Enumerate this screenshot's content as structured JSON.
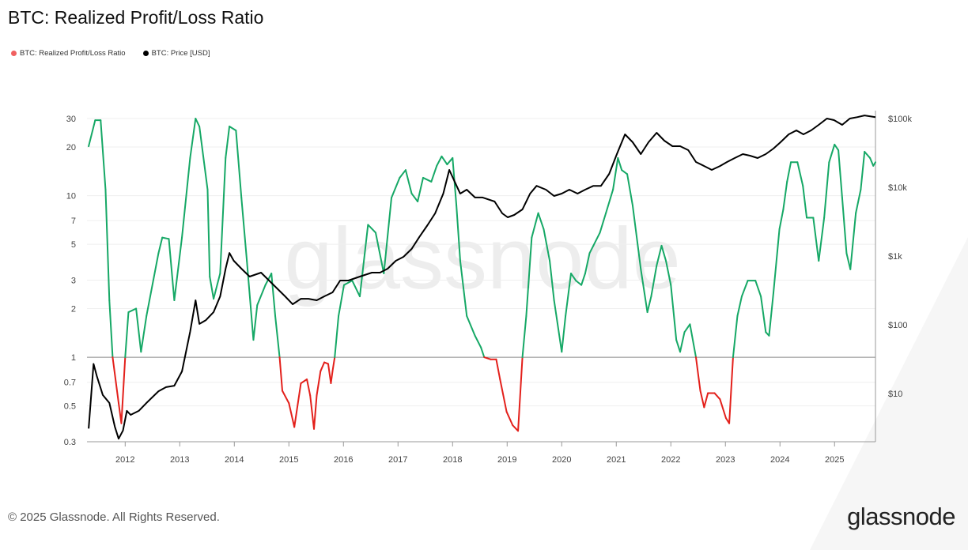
{
  "title": "BTC: Realized Profit/Loss Ratio",
  "legend": [
    {
      "label": "BTC: Realized Profit/Loss Ratio",
      "color": "#f06060"
    },
    {
      "label": "BTC: Price [USD]",
      "color": "#000000"
    }
  ],
  "watermark": "glassnode",
  "footer": "© 2025 Glassnode. All Rights Reserved.",
  "logo": "glassnode",
  "chart_data": {
    "type": "line",
    "title": "BTC: Realized Profit/Loss Ratio",
    "x_ticks": [
      "2012",
      "2013",
      "2014",
      "2015",
      "2016",
      "2017",
      "2018",
      "2019",
      "2020",
      "2021",
      "2022",
      "2023",
      "2024",
      "2025"
    ],
    "xlim": [
      2011.3,
      2025.75
    ],
    "y_left": {
      "scale": "log",
      "ylim": [
        0.3,
        30
      ],
      "ticks": [
        "0.3",
        "0.5",
        "0.7",
        "1",
        "2",
        "3",
        "5",
        "7",
        "10",
        "20",
        "30"
      ],
      "reference_line": 1
    },
    "y_right": {
      "scale": "log",
      "ylim": [
        2,
        130000
      ],
      "ticks": [
        {
          "v": 10,
          "label": "$10"
        },
        {
          "v": 100,
          "label": "$100"
        },
        {
          "v": 1000,
          "label": "$1k"
        },
        {
          "v": 10000,
          "label": "$10k"
        },
        {
          "v": 100000,
          "label": "$100k"
        }
      ]
    },
    "grid": true,
    "legend_position": "top-left",
    "colors": {
      "above_1": "#16a866",
      "below_1": "#e3201b",
      "price": "#000000"
    },
    "series": [
      {
        "name": "BTC: Realized Profit/Loss Ratio",
        "axis": "left",
        "points": [
          [
            2011.33,
            20.2
          ],
          [
            2011.45,
            29.3
          ],
          [
            2011.55,
            29.3
          ],
          [
            2011.64,
            10.9
          ],
          [
            2011.71,
            2.25
          ],
          [
            2011.77,
            1
          ],
          [
            2011.88,
            0.52
          ],
          [
            2011.93,
            0.39
          ],
          [
            2012.0,
            1
          ],
          [
            2012.06,
            1.9
          ],
          [
            2012.2,
            2.0
          ],
          [
            2012.29,
            1.08
          ],
          [
            2012.39,
            1.8
          ],
          [
            2012.61,
            4.4
          ],
          [
            2012.68,
            5.5
          ],
          [
            2012.8,
            5.4
          ],
          [
            2012.9,
            2.25
          ],
          [
            2013.04,
            5.5
          ],
          [
            2013.19,
            17.1
          ],
          [
            2013.29,
            30
          ],
          [
            2013.36,
            26.8
          ],
          [
            2013.51,
            10.9
          ],
          [
            2013.55,
            3.15
          ],
          [
            2013.62,
            2.3
          ],
          [
            2013.74,
            3.3
          ],
          [
            2013.84,
            17.1
          ],
          [
            2013.91,
            26.8
          ],
          [
            2014.03,
            25.3
          ],
          [
            2014.13,
            9.7
          ],
          [
            2014.23,
            3.95
          ],
          [
            2014.35,
            1.28
          ],
          [
            2014.42,
            2.1
          ],
          [
            2014.57,
            2.8
          ],
          [
            2014.68,
            3.3
          ],
          [
            2014.75,
            1.8
          ],
          [
            2014.83,
            1
          ],
          [
            2014.88,
            0.62
          ],
          [
            2015.0,
            0.52
          ],
          [
            2015.1,
            0.37
          ],
          [
            2015.22,
            0.69
          ],
          [
            2015.33,
            0.73
          ],
          [
            2015.39,
            0.58
          ],
          [
            2015.46,
            0.36
          ],
          [
            2015.51,
            0.58
          ],
          [
            2015.58,
            0.82
          ],
          [
            2015.65,
            0.93
          ],
          [
            2015.72,
            0.91
          ],
          [
            2015.77,
            0.69
          ],
          [
            2015.8,
            0.82
          ],
          [
            2015.84,
            1
          ],
          [
            2015.91,
            1.8
          ],
          [
            2016.01,
            2.8
          ],
          [
            2016.16,
            2.98
          ],
          [
            2016.3,
            2.38
          ],
          [
            2016.45,
            6.6
          ],
          [
            2016.59,
            5.9
          ],
          [
            2016.74,
            3.3
          ],
          [
            2016.88,
            9.7
          ],
          [
            2017.03,
            12.9
          ],
          [
            2017.14,
            14.4
          ],
          [
            2017.25,
            10.3
          ],
          [
            2017.36,
            9.2
          ],
          [
            2017.46,
            12.9
          ],
          [
            2017.61,
            12.2
          ],
          [
            2017.71,
            15.3
          ],
          [
            2017.8,
            17.5
          ],
          [
            2017.9,
            15.6
          ],
          [
            2018.0,
            17.1
          ],
          [
            2018.07,
            8.7
          ],
          [
            2018.14,
            3.95
          ],
          [
            2018.26,
            1.8
          ],
          [
            2018.41,
            1.36
          ],
          [
            2018.52,
            1.15
          ],
          [
            2018.58,
            1
          ],
          [
            2018.7,
            0.97
          ],
          [
            2018.8,
            0.97
          ],
          [
            2018.87,
            0.73
          ],
          [
            2018.99,
            0.46
          ],
          [
            2019.1,
            0.38
          ],
          [
            2019.2,
            0.35
          ],
          [
            2019.28,
            1
          ],
          [
            2019.35,
            1.8
          ],
          [
            2019.45,
            5.5
          ],
          [
            2019.57,
            7.8
          ],
          [
            2019.67,
            6.2
          ],
          [
            2019.78,
            3.95
          ],
          [
            2019.86,
            2.25
          ],
          [
            2020.0,
            1.08
          ],
          [
            2020.07,
            1.8
          ],
          [
            2020.17,
            3.3
          ],
          [
            2020.26,
            2.98
          ],
          [
            2020.36,
            2.8
          ],
          [
            2020.43,
            3.3
          ],
          [
            2020.51,
            4.4
          ],
          [
            2020.58,
            4.9
          ],
          [
            2020.7,
            5.9
          ],
          [
            2020.81,
            7.8
          ],
          [
            2020.94,
            10.9
          ],
          [
            2021.03,
            17.1
          ],
          [
            2021.1,
            14.4
          ],
          [
            2021.2,
            13.6
          ],
          [
            2021.3,
            8.7
          ],
          [
            2021.45,
            3.5
          ],
          [
            2021.57,
            1.9
          ],
          [
            2021.64,
            2.38
          ],
          [
            2021.74,
            3.7
          ],
          [
            2021.83,
            4.9
          ],
          [
            2021.91,
            3.95
          ],
          [
            2022.0,
            2.8
          ],
          [
            2022.1,
            1.28
          ],
          [
            2022.17,
            1.08
          ],
          [
            2022.25,
            1.43
          ],
          [
            2022.35,
            1.6
          ],
          [
            2022.46,
            1
          ],
          [
            2022.54,
            0.62
          ],
          [
            2022.61,
            0.49
          ],
          [
            2022.68,
            0.6
          ],
          [
            2022.8,
            0.6
          ],
          [
            2022.9,
            0.55
          ],
          [
            2023.01,
            0.42
          ],
          [
            2023.07,
            0.39
          ],
          [
            2023.14,
            1
          ],
          [
            2023.22,
            1.8
          ],
          [
            2023.3,
            2.38
          ],
          [
            2023.41,
            2.98
          ],
          [
            2023.55,
            2.98
          ],
          [
            2023.65,
            2.38
          ],
          [
            2023.74,
            1.43
          ],
          [
            2023.8,
            1.36
          ],
          [
            2023.88,
            2.5
          ],
          [
            2023.99,
            6.2
          ],
          [
            2024.06,
            8.2
          ],
          [
            2024.13,
            12.2
          ],
          [
            2024.2,
            16.1
          ],
          [
            2024.32,
            16.1
          ],
          [
            2024.42,
            11.5
          ],
          [
            2024.49,
            7.3
          ],
          [
            2024.61,
            7.3
          ],
          [
            2024.71,
            3.95
          ],
          [
            2024.81,
            7.3
          ],
          [
            2024.9,
            16.1
          ],
          [
            2025.0,
            20.7
          ],
          [
            2025.07,
            19.1
          ],
          [
            2025.14,
            9.7
          ],
          [
            2025.22,
            4.4
          ],
          [
            2025.29,
            3.5
          ],
          [
            2025.39,
            7.8
          ],
          [
            2025.48,
            10.9
          ],
          [
            2025.55,
            18.7
          ],
          [
            2025.65,
            17.1
          ],
          [
            2025.71,
            15.3
          ],
          [
            2025.75,
            16.1
          ]
        ]
      },
      {
        "name": "BTC: Price [USD]",
        "axis": "right",
        "points": [
          [
            2011.33,
            3.1
          ],
          [
            2011.42,
            27
          ],
          [
            2011.48,
            18
          ],
          [
            2011.59,
            9.5
          ],
          [
            2011.71,
            7.3
          ],
          [
            2011.81,
            3.3
          ],
          [
            2011.88,
            2.2
          ],
          [
            2011.96,
            2.9
          ],
          [
            2012.03,
            5.6
          ],
          [
            2012.1,
            4.9
          ],
          [
            2012.25,
            5.6
          ],
          [
            2012.39,
            7.3
          ],
          [
            2012.61,
            10.8
          ],
          [
            2012.75,
            12.4
          ],
          [
            2012.9,
            13
          ],
          [
            2013.04,
            21
          ],
          [
            2013.19,
            79
          ],
          [
            2013.29,
            227
          ],
          [
            2013.36,
            103
          ],
          [
            2013.48,
            117
          ],
          [
            2013.62,
            153
          ],
          [
            2013.74,
            259
          ],
          [
            2013.84,
            655
          ],
          [
            2013.91,
            1110
          ],
          [
            2013.99,
            853
          ],
          [
            2014.13,
            655
          ],
          [
            2014.28,
            502
          ],
          [
            2014.49,
            574
          ],
          [
            2014.71,
            386
          ],
          [
            2014.93,
            259
          ],
          [
            2015.07,
            199
          ],
          [
            2015.22,
            239
          ],
          [
            2015.36,
            239
          ],
          [
            2015.51,
            227
          ],
          [
            2015.65,
            259
          ],
          [
            2015.8,
            296
          ],
          [
            2015.94,
            440
          ],
          [
            2016.09,
            440
          ],
          [
            2016.3,
            502
          ],
          [
            2016.52,
            574
          ],
          [
            2016.67,
            574
          ],
          [
            2016.81,
            655
          ],
          [
            2016.96,
            853
          ],
          [
            2017.1,
            975
          ],
          [
            2017.25,
            1270
          ],
          [
            2017.39,
            1890
          ],
          [
            2017.54,
            2810
          ],
          [
            2017.68,
            4180
          ],
          [
            2017.83,
            8090
          ],
          [
            2017.94,
            17900
          ],
          [
            2018.04,
            12000
          ],
          [
            2018.14,
            8090
          ],
          [
            2018.26,
            9240
          ],
          [
            2018.41,
            7100
          ],
          [
            2018.55,
            7100
          ],
          [
            2018.77,
            6210
          ],
          [
            2018.91,
            4180
          ],
          [
            2019.01,
            3660
          ],
          [
            2019.13,
            3960
          ],
          [
            2019.28,
            4760
          ],
          [
            2019.42,
            8090
          ],
          [
            2019.54,
            10500
          ],
          [
            2019.71,
            9240
          ],
          [
            2019.86,
            7480
          ],
          [
            2020.0,
            8090
          ],
          [
            2020.14,
            9240
          ],
          [
            2020.29,
            8090
          ],
          [
            2020.43,
            9240
          ],
          [
            2020.58,
            10500
          ],
          [
            2020.72,
            10500
          ],
          [
            2020.87,
            15700
          ],
          [
            2021.01,
            30400
          ],
          [
            2021.16,
            58900
          ],
          [
            2021.3,
            45200
          ],
          [
            2021.45,
            30400
          ],
          [
            2021.59,
            45200
          ],
          [
            2021.74,
            62100
          ],
          [
            2021.88,
            47700
          ],
          [
            2022.03,
            39600
          ],
          [
            2022.17,
            39600
          ],
          [
            2022.32,
            34700
          ],
          [
            2022.46,
            23300
          ],
          [
            2022.61,
            20400
          ],
          [
            2022.75,
            17900
          ],
          [
            2022.9,
            20400
          ],
          [
            2023.03,
            23300
          ],
          [
            2023.17,
            26600
          ],
          [
            2023.32,
            30400
          ],
          [
            2023.45,
            28800
          ],
          [
            2023.59,
            26600
          ],
          [
            2023.74,
            30400
          ],
          [
            2023.88,
            36600
          ],
          [
            2024.01,
            45200
          ],
          [
            2024.16,
            58900
          ],
          [
            2024.3,
            67300
          ],
          [
            2024.43,
            58900
          ],
          [
            2024.57,
            67300
          ],
          [
            2024.71,
            80900
          ],
          [
            2024.86,
            100000
          ],
          [
            2024.99,
            94900
          ],
          [
            2025.14,
            80900
          ],
          [
            2025.28,
            100000
          ],
          [
            2025.42,
            105000
          ],
          [
            2025.55,
            111000
          ],
          [
            2025.75,
            105000
          ]
        ]
      }
    ]
  }
}
